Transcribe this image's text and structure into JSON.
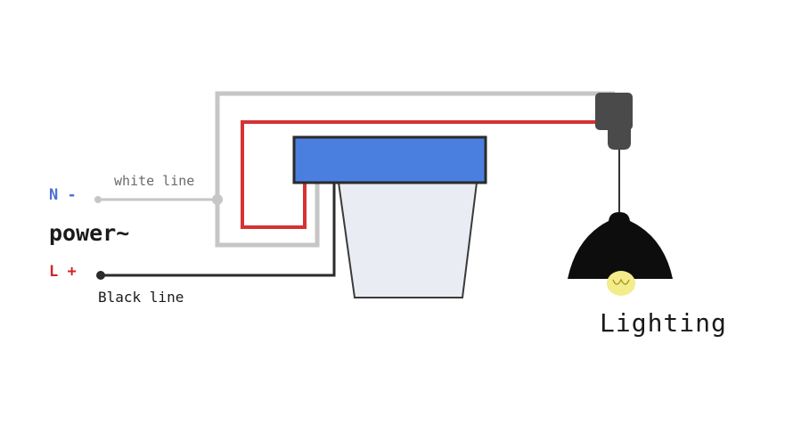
{
  "labels": {
    "neutral": "N -",
    "white_line": "white line",
    "power": "power∼",
    "live": "L +",
    "black_line": "Black line",
    "lighting": "Lighting"
  },
  "colors": {
    "neutral_label": "#4a6fd6",
    "live_label": "#d0262b",
    "white_wire": "#c6c6c6",
    "red_wire": "#d63232",
    "black_wire": "#2b2b2b",
    "sensor_cap": "#4a7fe0",
    "sensor_body": "#e9ecf3",
    "lamp_shade": "#0d0d0d",
    "bulb": "#f3ec8a",
    "text": "#1a1a1a"
  },
  "icons": {
    "sensor": "photocell-sensor-icon",
    "connector": "wire-connector-icon",
    "lamp": "pendant-lamp-icon"
  }
}
